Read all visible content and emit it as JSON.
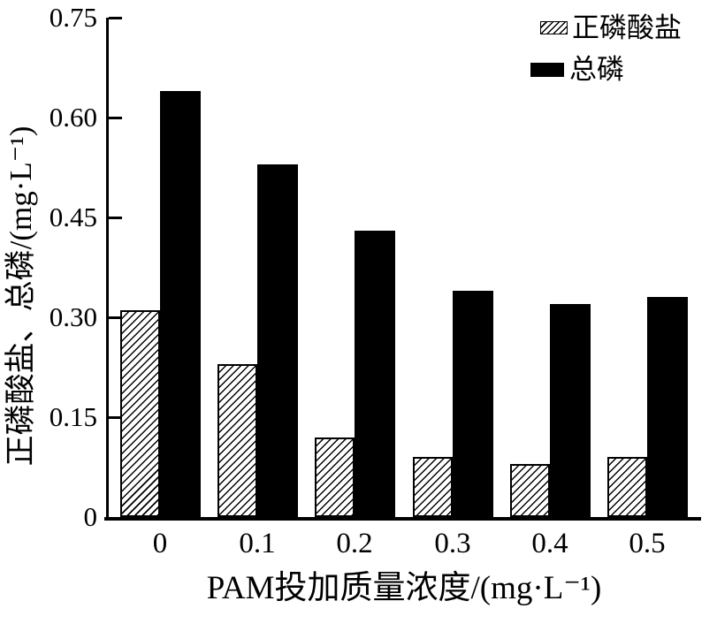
{
  "colors": {
    "foreground": "#000000",
    "background": "#ffffff",
    "bar_solid_fill": "#000000",
    "bar_hatch_line": "#000000"
  },
  "chart_data": {
    "type": "bar",
    "title": "",
    "categories": [
      "0",
      "0.1",
      "0.2",
      "0.3",
      "0.4",
      "0.5"
    ],
    "series": [
      {
        "name": "正磷酸盐",
        "style": "hatched",
        "swatch": "hatched-diagonal-lines",
        "values": [
          0.31,
          0.23,
          0.12,
          0.09,
          0.08,
          0.09
        ]
      },
      {
        "name": "总磷",
        "style": "solid",
        "swatch": "solid-black",
        "values": [
          0.64,
          0.53,
          0.43,
          0.34,
          0.32,
          0.33
        ]
      }
    ],
    "xlabel": "PAM投加质量浓度/(mg·L⁻¹)",
    "ylabel": "正磷酸盐、总磷/(mg·L⁻¹)",
    "ylim": [
      0,
      0.75
    ],
    "yticks": [
      0,
      0.15,
      0.3,
      0.45,
      0.6,
      0.75
    ],
    "ytick_labels": [
      "0",
      "0.15",
      "0.30",
      "0.45",
      "0.60",
      "0.75"
    ],
    "grid": false,
    "legend_position": "top-right",
    "tick_direction": "in"
  }
}
